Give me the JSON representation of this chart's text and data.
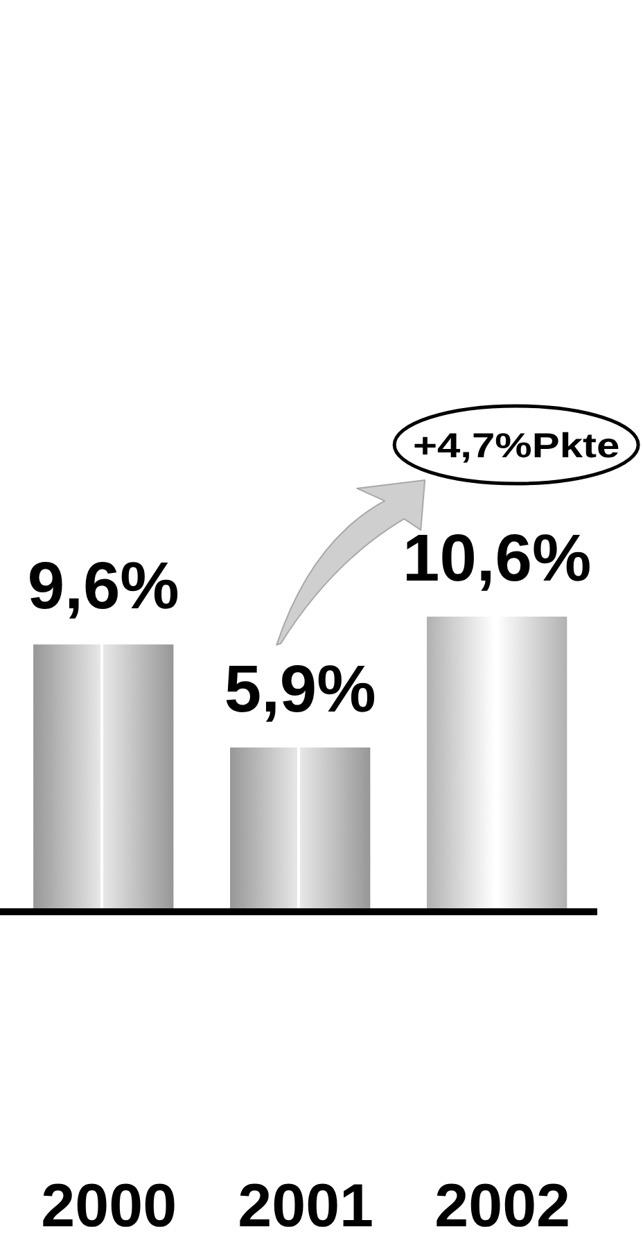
{
  "chart_data": {
    "type": "bar",
    "categories": [
      "2000",
      "2001",
      "2002"
    ],
    "values": [
      9.6,
      5.9,
      10.6
    ],
    "colors": [
      "#b4b4b4",
      "#b4b4b4",
      "#d4d4d4"
    ],
    "value_labels": [
      "9,6%",
      "5,9%",
      "10,6%"
    ],
    "annotations": [
      "+4,7%Pkte"
    ]
  }
}
